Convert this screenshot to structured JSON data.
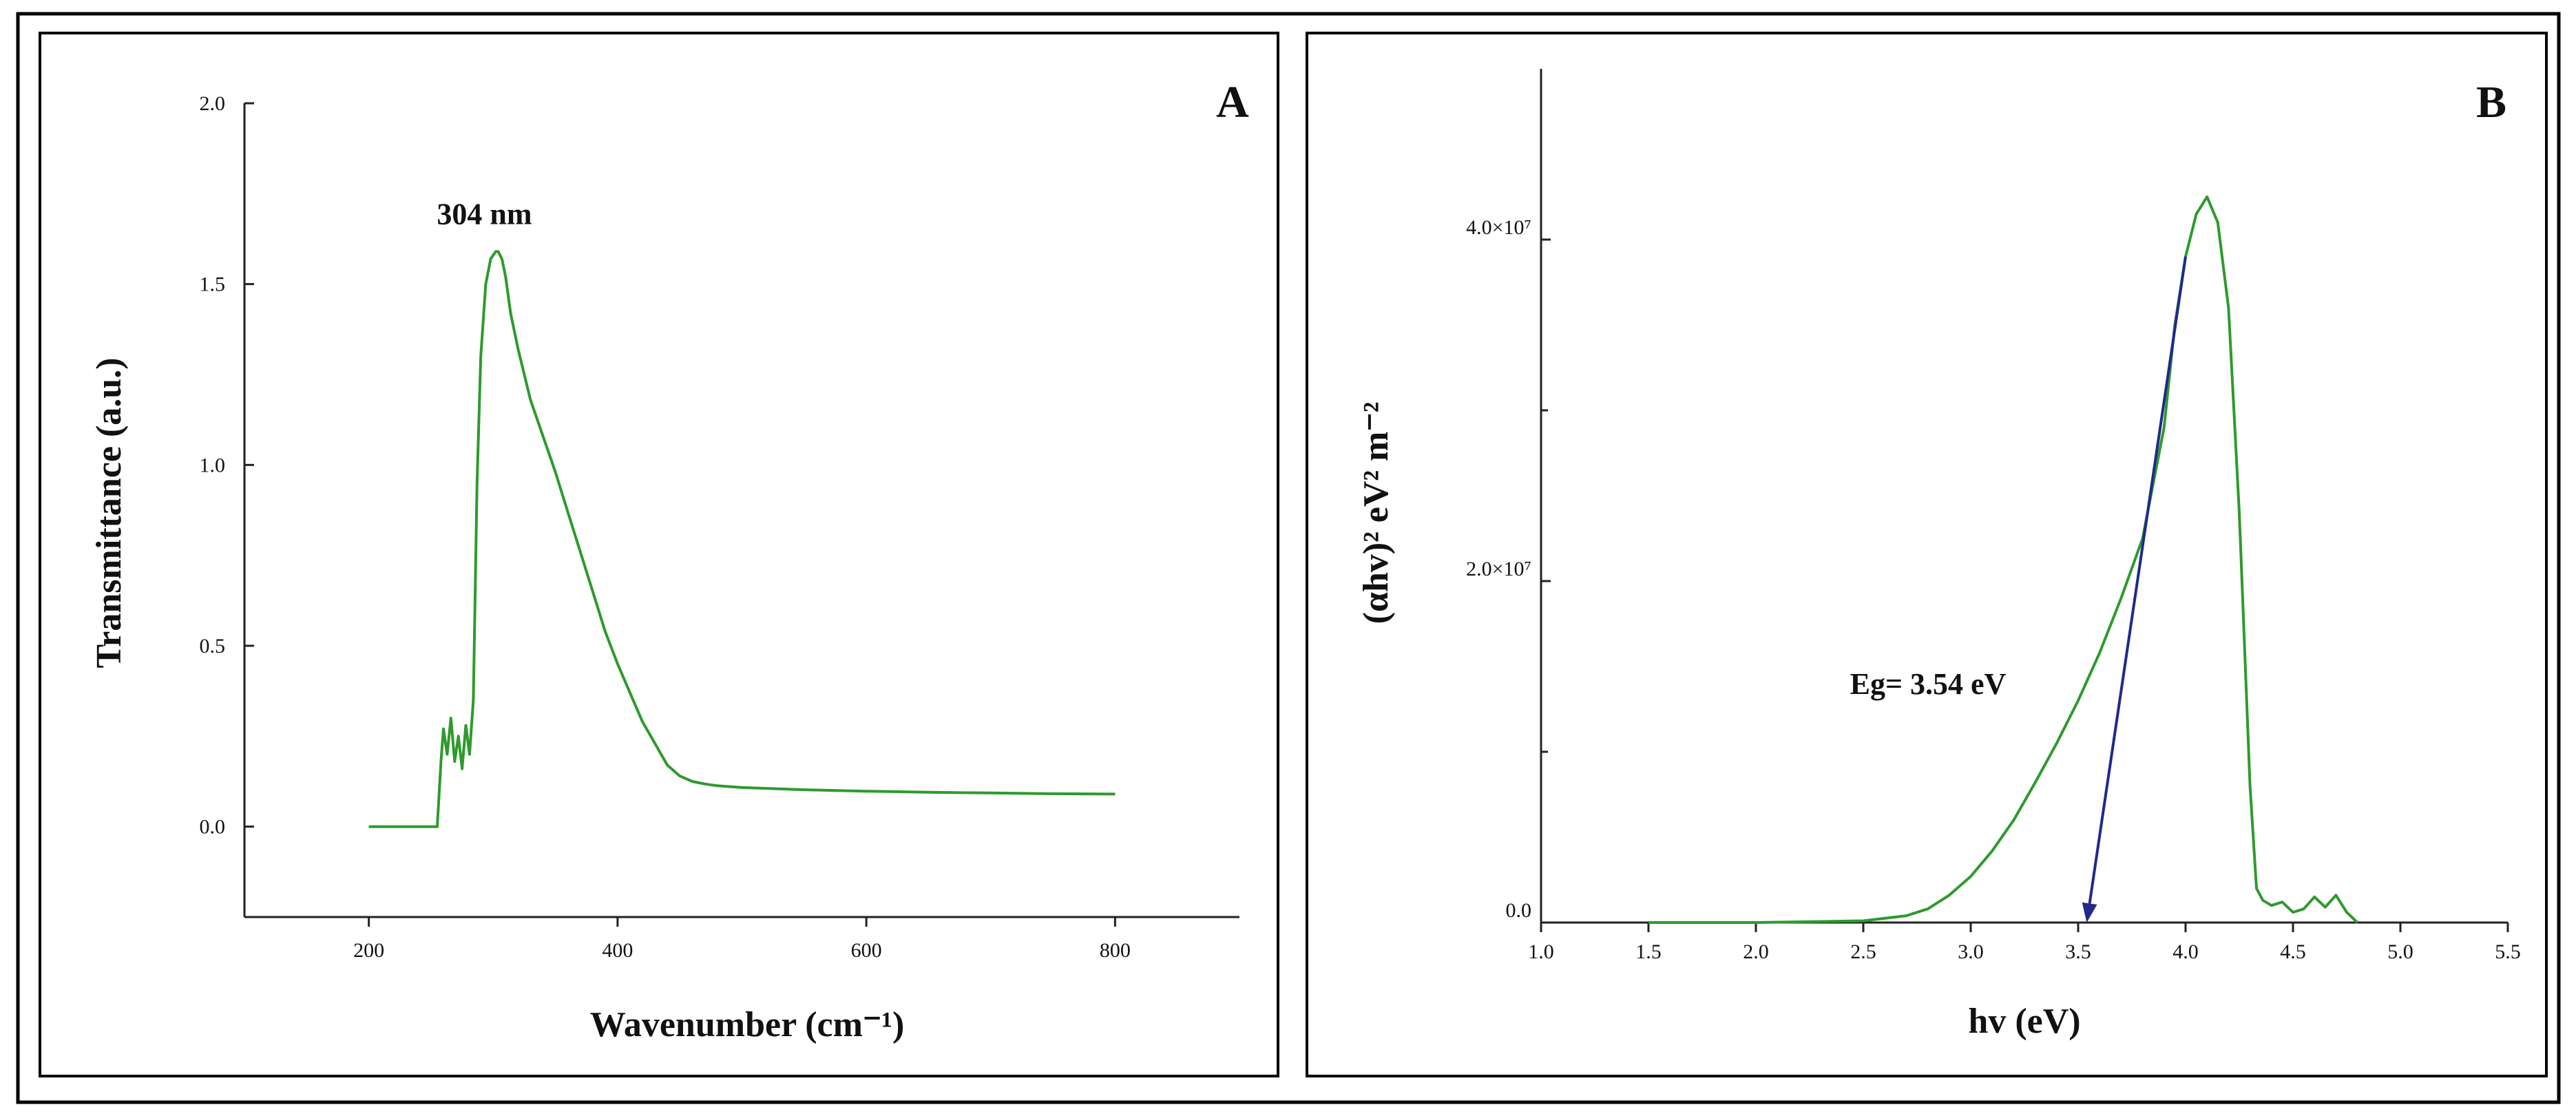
{
  "figure": {
    "colors": {
      "curve": "#2e9a2e",
      "tangent": "#1f2a8a",
      "axis": "#222222",
      "frame": "#000000"
    }
  },
  "chart_data": [
    {
      "type": "line",
      "panel": "A",
      "xlabel": "Wavenumber (cm⁻¹)",
      "ylabel": "Transmittance (a.u.)",
      "xlim": [
        100,
        900
      ],
      "ylim": [
        -0.25,
        2.0
      ],
      "xticks": [
        200,
        400,
        600,
        800
      ],
      "xtick_labels": [
        "200",
        "400",
        "600",
        "800"
      ],
      "yticks": [
        0.0,
        0.5,
        1.0,
        1.5,
        2.0
      ],
      "ytick_labels": [
        "0.0",
        "0.5",
        "1.0",
        "1.5",
        "2.0"
      ],
      "grid": false,
      "series": [
        {
          "x": [
            200,
            255,
            258,
            260,
            263,
            266,
            269,
            272,
            275,
            278,
            281,
            284,
            287,
            290,
            294,
            298,
            302,
            304,
            307,
            310,
            314,
            320,
            330,
            340,
            350,
            360,
            370,
            380,
            390,
            400,
            410,
            420,
            430,
            440,
            450,
            460,
            470,
            480,
            500,
            550,
            600,
            650,
            700,
            750,
            800
          ],
          "y": [
            0.0,
            0.0,
            0.18,
            0.27,
            0.2,
            0.3,
            0.18,
            0.25,
            0.16,
            0.28,
            0.2,
            0.35,
            0.95,
            1.3,
            1.5,
            1.57,
            1.59,
            1.59,
            1.57,
            1.52,
            1.42,
            1.32,
            1.18,
            1.08,
            0.98,
            0.87,
            0.76,
            0.65,
            0.54,
            0.45,
            0.37,
            0.29,
            0.23,
            0.17,
            0.14,
            0.125,
            0.118,
            0.113,
            0.108,
            0.102,
            0.098,
            0.095,
            0.093,
            0.091,
            0.09
          ]
        }
      ],
      "annotations": [
        {
          "text": "304 nm",
          "x": 304,
          "y": 1.59
        }
      ],
      "panel_label": "A"
    },
    {
      "type": "line",
      "panel": "B",
      "xlabel": "hv (eV)",
      "ylabel": "(αhv)² eV² m⁻²",
      "xlim": [
        1.0,
        5.5
      ],
      "ylim": [
        0,
        50000000
      ],
      "xticks": [
        1.0,
        1.5,
        2.0,
        2.5,
        3.0,
        3.5,
        4.0,
        4.5,
        5.0,
        5.5
      ],
      "xtick_labels": [
        "1.0",
        "1.5",
        "2.0",
        "2.5",
        "3.0",
        "3.5",
        "4.0",
        "4.5",
        "5.0",
        "5.5"
      ],
      "yticks": [
        0,
        20000000,
        40000000
      ],
      "ytick_labels": [
        "0.0",
        "2.0×10⁷",
        "4.0×10⁷"
      ],
      "y_minor_ticks": [
        10000000,
        30000000
      ],
      "grid": false,
      "series": [
        {
          "x": [
            1.5,
            2.0,
            2.5,
            2.7,
            2.8,
            2.9,
            3.0,
            3.1,
            3.2,
            3.3,
            3.4,
            3.5,
            3.6,
            3.7,
            3.8,
            3.9,
            3.95,
            4.0,
            4.05,
            4.1,
            4.15,
            4.2,
            4.25,
            4.3,
            4.33,
            4.36,
            4.4,
            4.45,
            4.5,
            4.55,
            4.6,
            4.65,
            4.7,
            4.75,
            4.8
          ],
          "y": [
            0,
            0,
            100000,
            400000,
            800000,
            1600000,
            2700000,
            4200000,
            6000000,
            8200000,
            10500000,
            13000000,
            15800000,
            19000000,
            22500000,
            29000000,
            35000000,
            39000000,
            41500000,
            42500000,
            41000000,
            36000000,
            24000000,
            8000000,
            2000000,
            1300000,
            1000000,
            1200000,
            600000,
            800000,
            1500000,
            900000,
            1600000,
            600000,
            0
          ]
        }
      ],
      "tangent_line": {
        "x": [
          4.0,
          3.54
        ],
        "y": [
          39000000,
          0
        ]
      },
      "annotations": [
        {
          "text": "Eg= 3.54 eV",
          "x": 3.54,
          "y": 0
        }
      ],
      "panel_label": "B"
    }
  ]
}
